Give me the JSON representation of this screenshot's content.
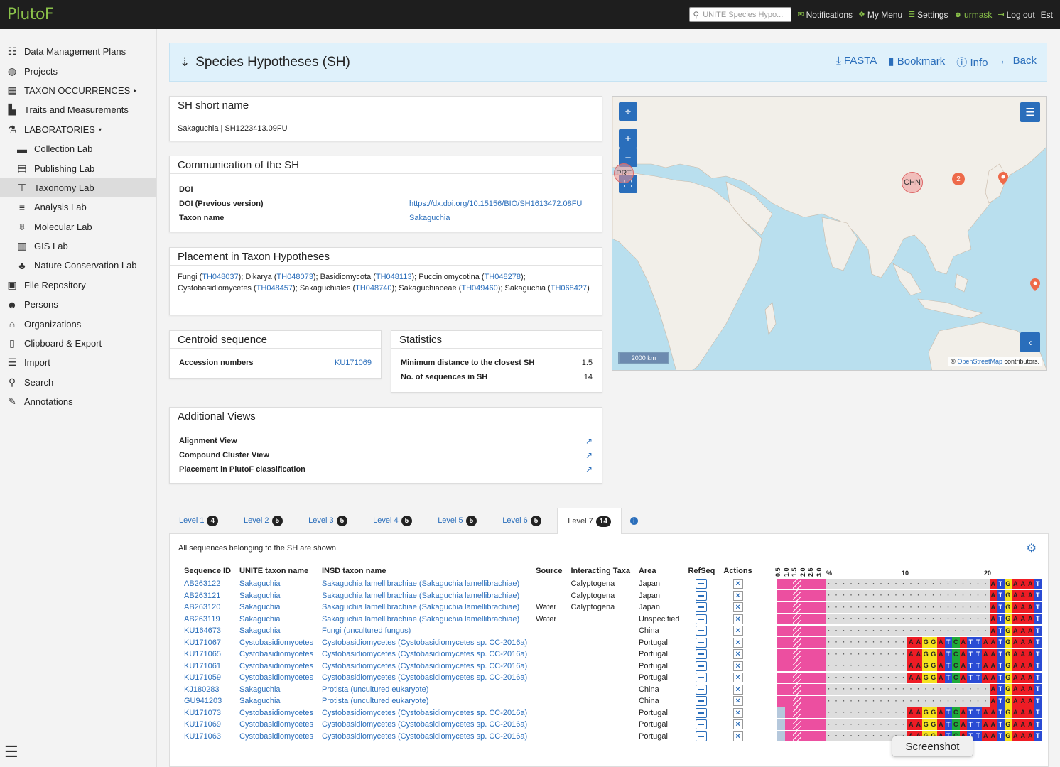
{
  "app": {
    "logo": "PlutoF"
  },
  "topbar": {
    "search_placeholder": "UNITE Species Hypo...",
    "notifications": "Notifications",
    "my_menu": "My Menu",
    "settings": "Settings",
    "user": "urmask",
    "logout": "Log out",
    "lang": "Est"
  },
  "sidebar": {
    "items": [
      {
        "label": "Data Management Plans",
        "icon": "list-icon",
        "glyph": "☷"
      },
      {
        "label": "Projects",
        "icon": "globe-icon",
        "glyph": "◍"
      },
      {
        "label": "TAXON OCCURRENCES",
        "icon": "grid-icon",
        "glyph": "▦",
        "caret": "▸"
      },
      {
        "label": "Traits and Measurements",
        "icon": "chart-icon",
        "glyph": "▙"
      },
      {
        "label": "LABORATORIES",
        "icon": "flask-icon",
        "glyph": "⚗",
        "caret": "▾"
      },
      {
        "label": "Collection Lab",
        "icon": "box-icon",
        "glyph": "▬",
        "sub": true
      },
      {
        "label": "Publishing Lab",
        "icon": "book-icon",
        "glyph": "▤",
        "sub": true
      },
      {
        "label": "Taxonomy Lab",
        "icon": "sitemap-icon",
        "glyph": "⊤",
        "sub": true,
        "active": true
      },
      {
        "label": "Analysis Lab",
        "icon": "align-icon",
        "glyph": "≡",
        "sub": true
      },
      {
        "label": "Molecular Lab",
        "icon": "vials-icon",
        "glyph": "♅",
        "sub": true
      },
      {
        "label": "GIS Lab",
        "icon": "map-icon",
        "glyph": "▥",
        "sub": true
      },
      {
        "label": "Nature Conservation Lab",
        "icon": "seedling-icon",
        "glyph": "♣",
        "sub": true
      },
      {
        "label": "File Repository",
        "icon": "save-icon",
        "glyph": "▣"
      },
      {
        "label": "Persons",
        "icon": "users-icon",
        "glyph": "☻"
      },
      {
        "label": "Organizations",
        "icon": "building-icon",
        "glyph": "⌂"
      },
      {
        "label": "Clipboard & Export",
        "icon": "clipboard-icon",
        "glyph": "▯"
      },
      {
        "label": "Import",
        "icon": "database-icon",
        "glyph": "☰"
      },
      {
        "label": "Search",
        "icon": "search-icon",
        "glyph": "⚲"
      },
      {
        "label": "Annotations",
        "icon": "pen-icon",
        "glyph": "✎"
      }
    ]
  },
  "header": {
    "title": "Species Hypotheses (SH)",
    "fasta": "FASTA",
    "bookmark": "Bookmark",
    "info": "Info",
    "back": "Back"
  },
  "sh_short": {
    "title": "SH short name",
    "value": "Sakaguchia | SH1223413.09FU"
  },
  "communication": {
    "title": "Communication of the SH",
    "doi_label": "DOI",
    "doi_prev_label": "DOI (Previous version)",
    "doi_prev_value": "https://dx.doi.org/10.15156/BIO/SH1613472.08FU",
    "taxon_label": "Taxon name",
    "taxon_value": "Sakaguchia"
  },
  "placement": {
    "title": "Placement in Taxon Hypotheses",
    "items": [
      {
        "name": "Fungi",
        "id": "TH048037"
      },
      {
        "name": "Dikarya",
        "id": "TH048073"
      },
      {
        "name": "Basidiomycota",
        "id": "TH048113"
      },
      {
        "name": "Pucciniomycotina",
        "id": "TH048278"
      },
      {
        "name": "Cystobasidiomycetes",
        "id": "TH048457"
      },
      {
        "name": "Sakaguchiales",
        "id": "TH048740"
      },
      {
        "name": "Sakaguchiaceae",
        "id": "TH049460"
      },
      {
        "name": "Sakaguchia",
        "id": "TH068427"
      }
    ]
  },
  "centroid": {
    "title": "Centroid sequence",
    "label": "Accession numbers",
    "value": "KU171069"
  },
  "statistics": {
    "title": "Statistics",
    "min_label": "Minimum distance to the closest SH",
    "min_value": "1.5",
    "count_label": "No. of sequences in SH",
    "count_value": "14"
  },
  "views": {
    "title": "Additional Views",
    "items": [
      "Alignment View",
      "Compound Cluster View",
      "Placement in PlutoF classification"
    ]
  },
  "map": {
    "scale": "2000 km",
    "attribution_link": "OpenStreetMap",
    "attribution_rest": " contributors.",
    "markers": {
      "prt": "PRT",
      "chn": "CHN",
      "cluster": "2"
    }
  },
  "tabs": [
    {
      "label": "Level 1",
      "count": "4"
    },
    {
      "label": "Level 2",
      "count": "5"
    },
    {
      "label": "Level 3",
      "count": "5"
    },
    {
      "label": "Level 4",
      "count": "5"
    },
    {
      "label": "Level 5",
      "count": "5"
    },
    {
      "label": "Level 6",
      "count": "5"
    },
    {
      "label": "Level 7",
      "count": "14",
      "active": true
    }
  ],
  "table": {
    "note": "All sequences belonging to the SH are shown",
    "headers": [
      "Sequence ID",
      "UNITE taxon name",
      "INSD taxon name",
      "Source",
      "Interacting Taxa",
      "Area",
      "RefSeq",
      "Actions"
    ],
    "rows": [
      [
        "AB263122",
        "Sakaguchia",
        "Sakaguchia lamellibrachiae (Sakaguchia lamellibrachiae)",
        "",
        "Calyptogena",
        "Japan"
      ],
      [
        "AB263121",
        "Sakaguchia",
        "Sakaguchia lamellibrachiae (Sakaguchia lamellibrachiae)",
        "",
        "Calyptogena",
        "Japan"
      ],
      [
        "AB263120",
        "Sakaguchia",
        "Sakaguchia lamellibrachiae (Sakaguchia lamellibrachiae)",
        "Water",
        "Calyptogena",
        "Japan"
      ],
      [
        "AB263119",
        "Sakaguchia",
        "Sakaguchia lamellibrachiae (Sakaguchia lamellibrachiae)",
        "Water",
        "",
        "Unspecified"
      ],
      [
        "KU164673",
        "Sakaguchia",
        "Fungi (uncultured fungus)",
        "",
        "",
        "China"
      ],
      [
        "KU171067",
        "Cystobasidiomycetes",
        "Cystobasidiomycetes (Cystobasidiomycetes sp. CC-2016a)",
        "",
        "",
        "Portugal"
      ],
      [
        "KU171065",
        "Cystobasidiomycetes",
        "Cystobasidiomycetes (Cystobasidiomycetes sp. CC-2016a)",
        "",
        "",
        "Portugal"
      ],
      [
        "KU171061",
        "Cystobasidiomycetes",
        "Cystobasidiomycetes (Cystobasidiomycetes sp. CC-2016a)",
        "",
        "",
        "Portugal"
      ],
      [
        "KU171059",
        "Cystobasidiomycetes",
        "Cystobasidiomycetes (Cystobasidiomycetes sp. CC-2016a)",
        "",
        "",
        "Portugal"
      ],
      [
        "KJ180283",
        "Sakaguchia",
        "Protista (uncultured eukaryote)",
        "",
        "",
        "China"
      ],
      [
        "GU941203",
        "Sakaguchia",
        "Protista (uncultured eukaryote)",
        "",
        "",
        "China"
      ],
      [
        "KU171073",
        "Cystobasidiomycetes",
        "Cystobasidiomycetes (Cystobasidiomycetes sp. CC-2016a)",
        "",
        "",
        "Portugal"
      ],
      [
        "KU171069",
        "Cystobasidiomycetes",
        "Cystobasidiomycetes (Cystobasidiomycetes sp. CC-2016a)",
        "",
        "",
        "Portugal"
      ],
      [
        "KU171063",
        "Cystobasidiomycetes",
        "Cystobasidiomycetes (Cystobasidiomycetes sp. CC-2016a)",
        "",
        "",
        "Portugal"
      ]
    ]
  },
  "alignment": {
    "thresholds": [
      "0.5",
      "1.0",
      "1.5",
      "2.0",
      "2.5",
      "3.0"
    ],
    "pct": "%",
    "pos_10": "10",
    "pos_20": "20",
    "long_seq": "AAGGATCATTAATGAAAT",
    "short_seq": "ATGAAAT",
    "row_types": [
      "short",
      "short",
      "short",
      "short",
      "short",
      "long",
      "long",
      "long",
      "long",
      "short",
      "short",
      "long",
      "long",
      "long"
    ],
    "row_first_blue": [
      false,
      false,
      false,
      false,
      false,
      false,
      false,
      false,
      false,
      false,
      false,
      true,
      true,
      true
    ],
    "colors": {
      "A": "#ee1c25",
      "T": "#2b4bd4",
      "G": "#f5e21e",
      "C": "#1faa3a",
      "pink": "#ec4fa0"
    }
  },
  "tooltip": "Screenshot"
}
